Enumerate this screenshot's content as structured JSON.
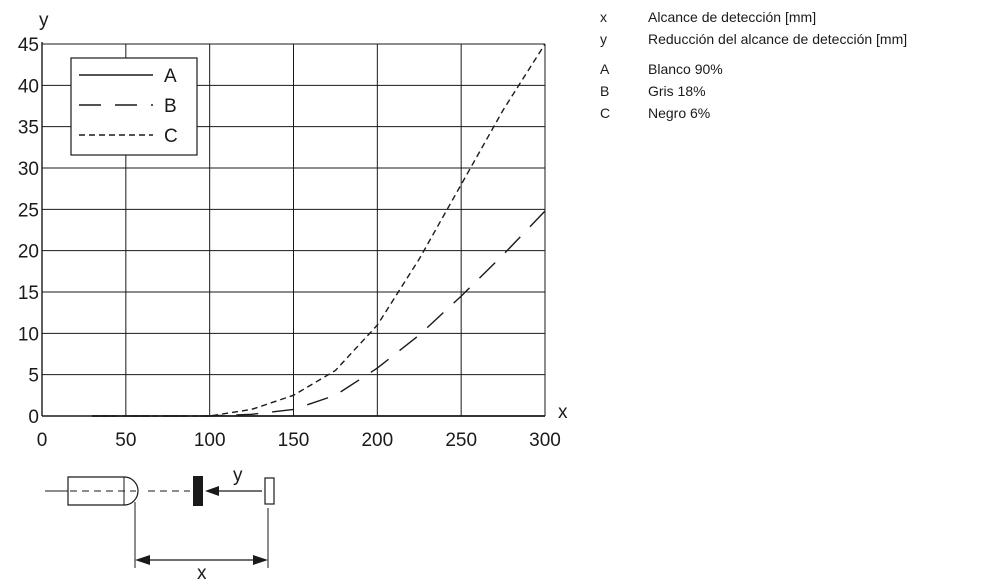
{
  "chart_data": {
    "type": "line",
    "x_axis_letter": "x",
    "y_axis_letter": "y",
    "xlim": [
      0,
      300
    ],
    "ylim": [
      0,
      45
    ],
    "x_ticks": [
      0,
      50,
      100,
      150,
      200,
      250,
      300
    ],
    "y_ticks": [
      0,
      5,
      10,
      15,
      20,
      25,
      30,
      35,
      40,
      45
    ],
    "x_tick_labels": [
      "0",
      "50",
      "100",
      "150",
      "200",
      "250",
      "300"
    ],
    "y_tick_labels": [
      "0",
      "5",
      "10",
      "15",
      "20",
      "25",
      "30",
      "35",
      "40",
      "45"
    ],
    "grid": true,
    "legend_position": "top-left",
    "series": [
      {
        "name": "A",
        "style": "solid",
        "x": [
          30,
          100,
          150,
          200,
          250,
          300
        ],
        "y": [
          0,
          0,
          0,
          0,
          0,
          0
        ]
      },
      {
        "name": "B",
        "style": "long-dash",
        "x": [
          30,
          100,
          125,
          150,
          175,
          200,
          225,
          250,
          275,
          300
        ],
        "y": [
          0,
          0,
          0.2,
          0.8,
          2.5,
          5.8,
          9.8,
          14.5,
          19.5,
          24.8
        ]
      },
      {
        "name": "C",
        "style": "short-dash",
        "x": [
          30,
          100,
          125,
          150,
          175,
          200,
          225,
          250,
          275,
          300
        ],
        "y": [
          0,
          0,
          0.8,
          2.5,
          5.5,
          11.0,
          19.0,
          28.0,
          37.0,
          45.0
        ]
      }
    ],
    "diagram": {
      "x_label": "x",
      "y_label": "y"
    }
  },
  "key": {
    "axes": [
      {
        "code": "x",
        "text": "Alcance de detección [mm]"
      },
      {
        "code": "y",
        "text": "Reducción del alcance de detección [mm]"
      }
    ],
    "series": [
      {
        "code": "A",
        "text": "Blanco 90%"
      },
      {
        "code": "B",
        "text": "Gris 18%"
      },
      {
        "code": "C",
        "text": "Negro 6%"
      }
    ]
  },
  "colors": {
    "line": "#1a1a1a",
    "grid": "#1a1a1a",
    "background": "#ffffff"
  }
}
